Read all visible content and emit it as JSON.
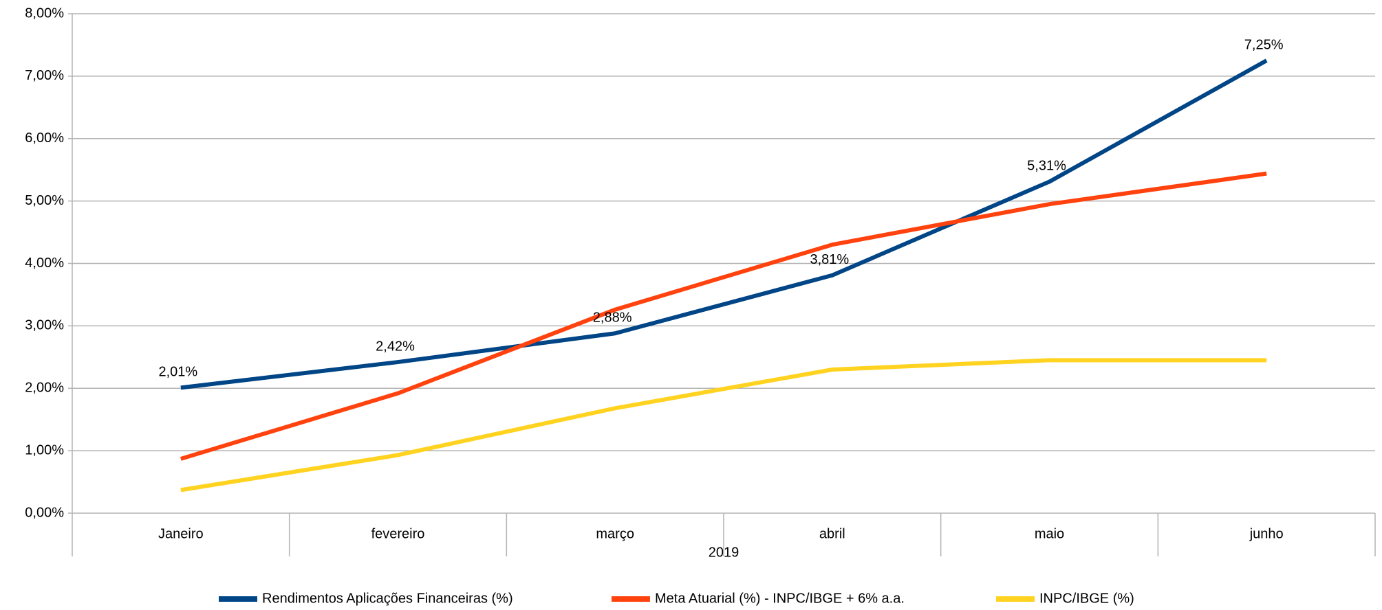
{
  "chart_data": {
    "type": "line",
    "categories": [
      "Janeiro",
      "fevereiro",
      "março",
      "abril",
      "maio",
      "junho"
    ],
    "category_group": "2019",
    "series": [
      {
        "name": "Rendimentos Aplicações Financeiras (%)",
        "color": "#004586",
        "values": [
          2.01,
          2.42,
          2.88,
          3.81,
          5.31,
          7.25
        ],
        "value_labels": [
          "2,01%",
          "2,42%",
          "2,88%",
          "3,81%",
          "5,31%",
          "7,25%"
        ]
      },
      {
        "name": "Meta Atuarial (%) - INPC/IBGE + 6% a.a.",
        "color": "#ff420e",
        "values": [
          0.87,
          1.92,
          3.26,
          4.3,
          4.95,
          5.44
        ]
      },
      {
        "name": "INPC/IBGE (%)",
        "color": "#ffd320",
        "values": [
          0.37,
          0.93,
          1.68,
          2.3,
          2.45,
          2.45
        ]
      }
    ],
    "ylim": [
      0,
      8
    ],
    "yticks": [
      {
        "value": 0,
        "label": "0,00%"
      },
      {
        "value": 1,
        "label": "1,00%"
      },
      {
        "value": 2,
        "label": "2,00%"
      },
      {
        "value": 3,
        "label": "3,00%"
      },
      {
        "value": 4,
        "label": "4,00%"
      },
      {
        "value": 5,
        "label": "5,00%"
      },
      {
        "value": 6,
        "label": "6,00%"
      },
      {
        "value": 7,
        "label": "7,00%"
      },
      {
        "value": 8,
        "label": "8,00%"
      }
    ],
    "grid": true,
    "legend": "bottom"
  }
}
